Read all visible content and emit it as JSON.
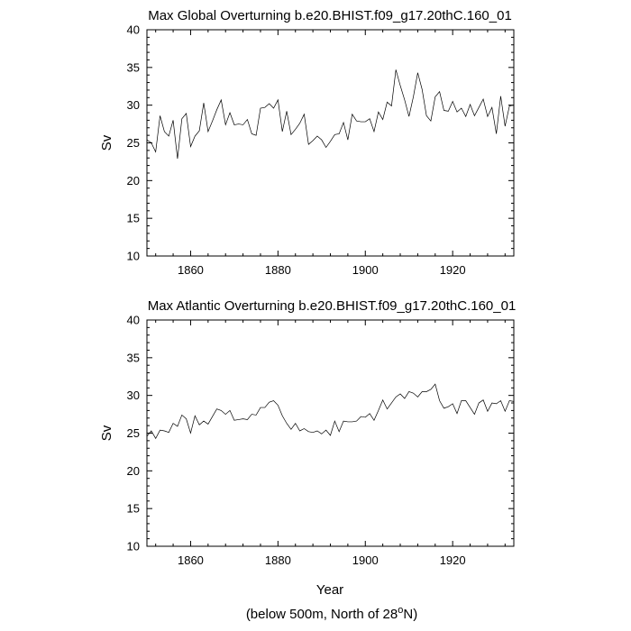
{
  "chart_data": [
    {
      "type": "line",
      "title": "Max Global Overturning b.e20.BHIST.f09_g17.20thC.160_01",
      "ylabel": "Sv",
      "xlabel": "",
      "xlim": [
        1850,
        1934
      ],
      "ylim": [
        10,
        40
      ],
      "xticks": [
        1860,
        1880,
        1900,
        1920
      ],
      "yticks": [
        10,
        15,
        20,
        25,
        30,
        35,
        40
      ],
      "grid": false,
      "x_start": 1850,
      "series": [
        {
          "name": "Max Global Overturning",
          "values": [
            25.4,
            25.0,
            23.8,
            28.6,
            26.5,
            25.9,
            28.0,
            22.9,
            28.2,
            28.9,
            24.5,
            25.9,
            26.6,
            30.3,
            26.5,
            27.9,
            29.4,
            30.7,
            27.4,
            29.0,
            27.4,
            27.5,
            27.4,
            28.1,
            26.2,
            26.0,
            29.6,
            29.7,
            30.2,
            29.6,
            30.7,
            26.5,
            29.2,
            26.1,
            26.8,
            27.6,
            28.8,
            24.8,
            25.3,
            25.9,
            25.4,
            24.4,
            25.2,
            26.1,
            26.2,
            27.7,
            25.4,
            28.8,
            27.9,
            27.8,
            27.8,
            28.2,
            26.5,
            29.1,
            28.1,
            30.4,
            29.9,
            34.7,
            32.6,
            30.7,
            28.5,
            31.1,
            34.3,
            32.1,
            28.6,
            27.9,
            31.1,
            31.8,
            29.3,
            29.2,
            30.5,
            29.1,
            29.6,
            28.5,
            30.1,
            28.6,
            29.7,
            30.8,
            28.5,
            29.7,
            26.2,
            31.2,
            27.2,
            29.9,
            30.0
          ]
        }
      ]
    },
    {
      "type": "line",
      "title": "Max Atlantic Overturning b.e20.BHIST.f09_g17.20thC.160_01",
      "ylabel": "Sv",
      "xlabel": "Year",
      "xlim": [
        1850,
        1934
      ],
      "ylim": [
        10,
        40
      ],
      "xticks": [
        1860,
        1880,
        1900,
        1920
      ],
      "yticks": [
        10,
        15,
        20,
        25,
        30,
        35,
        40
      ],
      "grid": false,
      "x_start": 1850,
      "series": [
        {
          "name": "Max Atlantic Overturning",
          "values": [
            24.6,
            25.3,
            24.3,
            25.4,
            25.3,
            25.1,
            26.3,
            25.9,
            27.4,
            26.9,
            25.0,
            27.3,
            26.1,
            26.6,
            26.2,
            27.2,
            28.2,
            28.0,
            27.5,
            28.0,
            26.7,
            26.8,
            26.9,
            26.8,
            27.5,
            27.4,
            28.4,
            28.4,
            29.1,
            29.3,
            28.7,
            27.3,
            26.3,
            25.5,
            26.3,
            25.3,
            25.6,
            25.2,
            25.1,
            25.3,
            24.9,
            25.4,
            24.7,
            26.6,
            25.2,
            26.6,
            26.5,
            26.5,
            26.6,
            27.2,
            27.1,
            27.6,
            26.7,
            28.0,
            29.4,
            28.2,
            29.0,
            29.8,
            30.2,
            29.6,
            30.5,
            30.3,
            29.8,
            30.5,
            30.5,
            30.8,
            31.5,
            29.3,
            28.3,
            28.5,
            28.9,
            27.6,
            29.3,
            29.3,
            28.4,
            27.5,
            29.0,
            29.4,
            27.9,
            29.0,
            28.9,
            29.3,
            27.9,
            29.3,
            29.2
          ]
        }
      ]
    }
  ],
  "caption": {
    "prefix": "(below 500m, North of 28",
    "superscript": "o",
    "suffix": "N)"
  }
}
